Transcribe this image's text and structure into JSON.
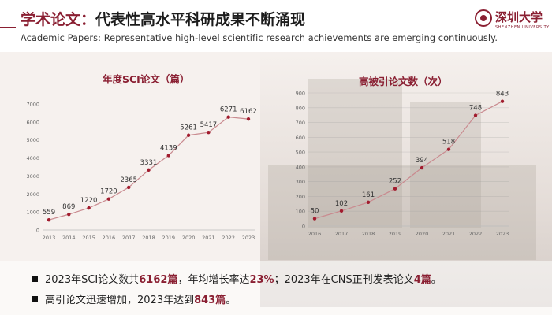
{
  "header": {
    "title_highlight": "学术论文：",
    "title_rest": "代表性高水平科研成果不断涌现",
    "subtitle": "Academic Papers: Representative high-level scientific research achievements are emerging continuously.",
    "logo_name": "深圳大学",
    "logo_en": "SHENZHEN UNIVERSITY"
  },
  "colors": {
    "brand": "#8a1f32",
    "line": "#c98a8f",
    "point": "#a11c2e"
  },
  "chart_data": [
    {
      "type": "line",
      "title": "年度SCI论文（篇）",
      "x": [
        "2013",
        "2014",
        "2015",
        "2016",
        "2017",
        "2018",
        "2019",
        "2020",
        "2021",
        "2022",
        "2023"
      ],
      "values": [
        559,
        869,
        1220,
        1720,
        2365,
        3331,
        4139,
        5261,
        5417,
        6271,
        6162
      ],
      "ylim": [
        0,
        7000
      ],
      "yticks": [
        0,
        1000,
        2000,
        3000,
        4000,
        5000,
        6000,
        7000
      ],
      "grid": false,
      "data_labels": true
    },
    {
      "type": "line",
      "title": "高被引论文数（次）",
      "x": [
        "2016",
        "2017",
        "2018",
        "2019",
        "2020",
        "2021",
        "2022",
        "2023"
      ],
      "values": [
        50,
        102,
        161,
        252,
        394,
        518,
        748,
        843
      ],
      "ylim": [
        0,
        900
      ],
      "yticks": [
        0,
        100,
        200,
        300,
        400,
        500,
        600,
        700,
        800,
        900
      ],
      "grid": true,
      "data_labels": true
    }
  ],
  "bullets": [
    {
      "t1": "2023年SCI论文数共",
      "h1": "6162篇",
      "t2": "，年均增长率达",
      "h2": "23%",
      "t3": "；2023年在CNS正刊发表论文",
      "h3": "4篇",
      "t4": "。"
    },
    {
      "t1": "高引论文迅速增加，2023年达到",
      "h1": "843篇",
      "t2": "。"
    }
  ]
}
